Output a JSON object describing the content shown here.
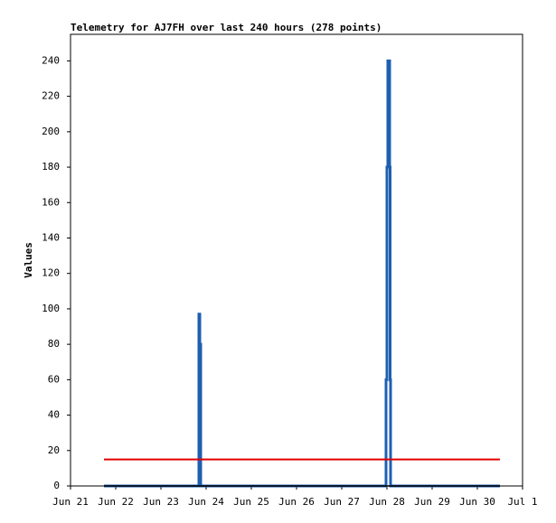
{
  "chart_data": {
    "type": "line",
    "title": "Telemetry for AJ7FH over last 240 hours (278 points)",
    "y_label": "Values",
    "xlim": [
      0,
      10
    ],
    "xticks": [
      {
        "value": 0,
        "label": "Jun 21"
      },
      {
        "value": 1,
        "label": "Jun 22"
      },
      {
        "value": 2,
        "label": "Jun 23"
      },
      {
        "value": 3,
        "label": "Jun 24"
      },
      {
        "value": 4,
        "label": "Jun 25"
      },
      {
        "value": 5,
        "label": "Jun 26"
      },
      {
        "value": 6,
        "label": "Jun 27"
      },
      {
        "value": 7,
        "label": "Jun 28"
      },
      {
        "value": 8,
        "label": "Jun 29"
      },
      {
        "value": 9,
        "label": "Jun 30"
      },
      {
        "value": 10,
        "label": "Jul 1"
      }
    ],
    "ylim": [
      0,
      255
    ],
    "yticks": [
      0,
      20,
      40,
      60,
      80,
      100,
      120,
      140,
      160,
      180,
      200,
      220,
      240
    ],
    "grid": false,
    "series": [
      {
        "color": "#1f5fb0",
        "width": 3,
        "x": [
          0.74,
          2.84,
          2.84,
          2.86,
          2.86,
          2.88,
          2.88,
          6.98,
          6.98,
          7.0,
          7.0,
          7.02,
          7.02,
          7.06,
          7.06,
          7.07,
          7.07,
          7.08,
          7.08,
          9.5
        ],
        "values": [
          0,
          0,
          97,
          97,
          80,
          80,
          0,
          0,
          60,
          60,
          180,
          180,
          240,
          240,
          180,
          180,
          60,
          60,
          0,
          0
        ]
      },
      {
        "color": "#000000",
        "width": 1.5,
        "x": [
          0.74,
          9.5
        ],
        "values": [
          0,
          0
        ]
      },
      {
        "color": "#e00000",
        "width": 2,
        "x": [
          0.74,
          9.5
        ],
        "values": [
          15,
          15
        ]
      }
    ]
  }
}
